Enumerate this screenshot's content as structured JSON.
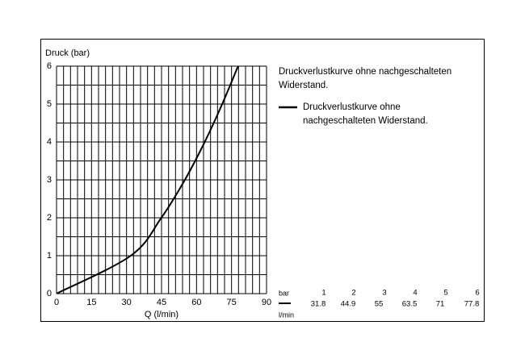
{
  "chart_data": {
    "type": "line",
    "annotation": "Druckverlustkurve ohne nachgeschalteten Widerstand.",
    "y_label": "Druck (bar)",
    "x_label": "Q (l/min)",
    "series": [
      {
        "name": "Druckverlustkurve ohne nachgeschalteten Widerstand.",
        "color": "#000000",
        "x": [
          0,
          31.8,
          44.9,
          55.0,
          63.5,
          71.0,
          77.8
        ],
        "y": [
          0,
          1,
          2,
          3,
          4,
          5,
          6
        ]
      }
    ],
    "xlim": [
      0,
      90
    ],
    "xticks": [
      0,
      15,
      30,
      45,
      60,
      75,
      90
    ],
    "ylim": [
      0,
      6
    ],
    "yticks": [
      0,
      1,
      2,
      3,
      4,
      5,
      6
    ],
    "grid": true,
    "table": {
      "row_label_top": "bar",
      "row_label_bottom": "l/min"
    }
  }
}
